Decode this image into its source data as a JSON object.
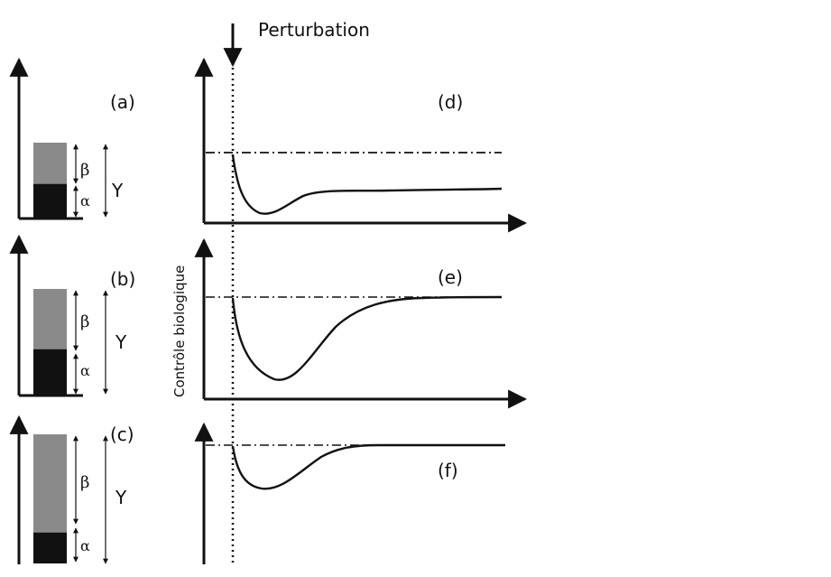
{
  "figure": {
    "perturbation_label": "Perturbation",
    "y_axis_label": "Contrôle biologique",
    "colors": {
      "beta_fill": "#8a8a8a",
      "alpha_fill": "#111111",
      "ink": "#111111"
    },
    "bar_panels": [
      {
        "label": "(a)",
        "beta": "β",
        "alpha": "α",
        "total": "Y",
        "beta_share": 0.55,
        "alpha_share": 0.45
      },
      {
        "label": "(b)",
        "beta": "β",
        "alpha": "α",
        "total": "Y",
        "beta_share": 0.57,
        "alpha_share": 0.43
      },
      {
        "label": "(c)",
        "beta": "β",
        "alpha": "α",
        "total": "Y",
        "beta_share": 0.76,
        "alpha_share": 0.24
      }
    ],
    "curve_panels": [
      {
        "label": "(d)"
      },
      {
        "label": "(e)"
      },
      {
        "label": "(f)"
      }
    ]
  }
}
